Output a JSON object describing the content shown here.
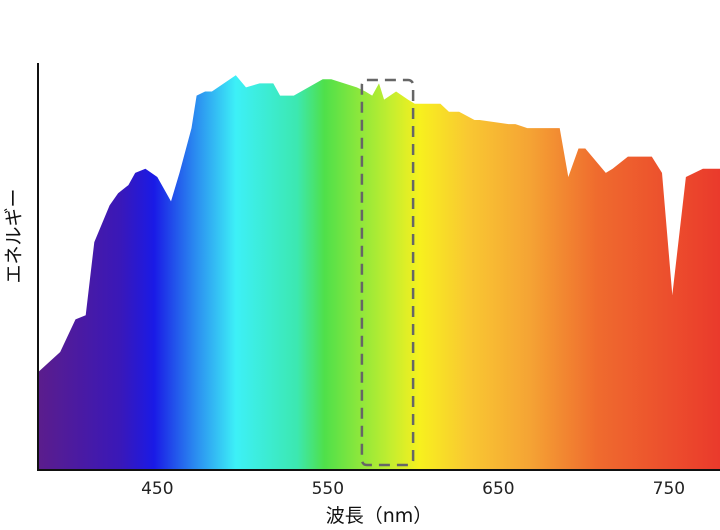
{
  "chart_data": {
    "type": "area",
    "title": "",
    "xlabel": "波長（nm）",
    "ylabel": "エネルギー",
    "xlim": [
      380,
      780
    ],
    "ylim": [
      0,
      1
    ],
    "xticks": [
      450,
      550,
      650,
      750
    ],
    "x": [
      380,
      393,
      402,
      408,
      413,
      422,
      427,
      433,
      437,
      443,
      450,
      458,
      463,
      470,
      473,
      478,
      482,
      496,
      502,
      510,
      518,
      522,
      530,
      547,
      552,
      567,
      572,
      576,
      580,
      583,
      590,
      597,
      601,
      616,
      621,
      627,
      636,
      639,
      656,
      660,
      667,
      674,
      686,
      691,
      697,
      701,
      713,
      717,
      726,
      740,
      746,
      752,
      760,
      770,
      780
    ],
    "y": [
      0.24,
      0.29,
      0.37,
      0.38,
      0.56,
      0.65,
      0.68,
      0.7,
      0.73,
      0.74,
      0.72,
      0.66,
      0.73,
      0.84,
      0.92,
      0.93,
      0.93,
      0.97,
      0.94,
      0.95,
      0.95,
      0.92,
      0.92,
      0.96,
      0.96,
      0.94,
      0.93,
      0.92,
      0.95,
      0.91,
      0.93,
      0.91,
      0.9,
      0.9,
      0.88,
      0.88,
      0.86,
      0.86,
      0.85,
      0.85,
      0.84,
      0.84,
      0.84,
      0.72,
      0.79,
      0.79,
      0.73,
      0.74,
      0.77,
      0.77,
      0.73,
      0.43,
      0.72,
      0.74,
      0.74
    ],
    "highlight": {
      "x_range": [
        570,
        600
      ],
      "style": "dashed-box"
    },
    "colors": [
      "#5b1d8c",
      "#1a1ae6",
      "#3df0f7",
      "#4fe04a",
      "#f7f01e",
      "#f5a434",
      "#ea3a2c"
    ]
  }
}
